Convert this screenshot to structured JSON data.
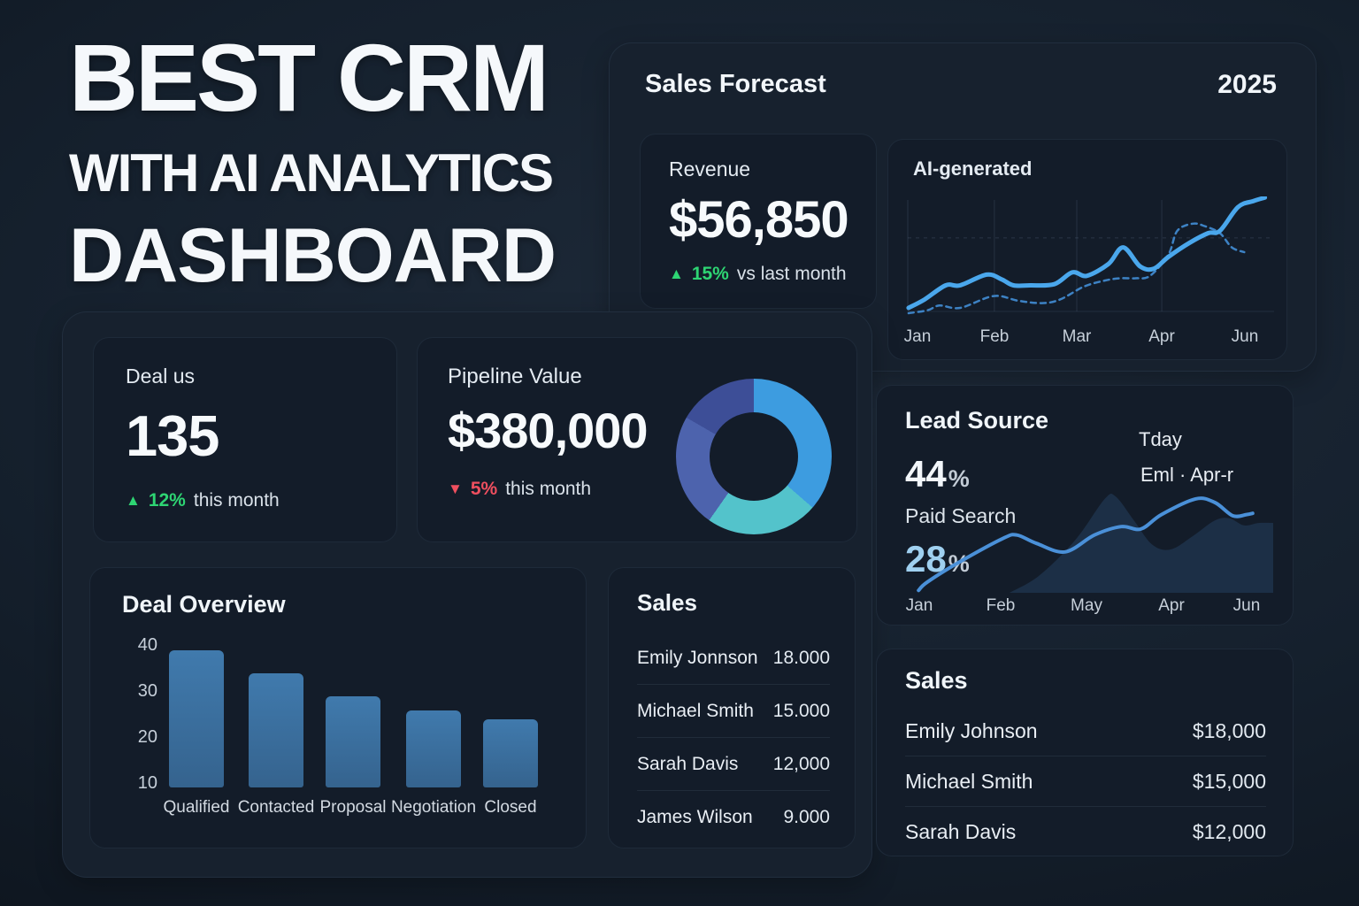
{
  "page": {
    "title_lines": [
      "BEST CRM",
      "WITH AI ANALYTICS",
      "DASHBOARD"
    ]
  },
  "colors": {
    "green": "#2ed573",
    "red": "#ef4f5f",
    "solid_line": "#4aa7ec",
    "dashed_line": "#3d82c4",
    "lead_line": "#4a90d8",
    "lead_fill": "#24405f",
    "stat_lightblue": "#9fd0f0",
    "bar_blue": "#3a6d9c"
  },
  "forecast": {
    "title": "Sales Forecast",
    "year": "2025",
    "revenue_label": "Revenue",
    "revenue_value": "$56,850",
    "delta_icon": "▲",
    "delta_value": "15%",
    "delta_suffix": "vs last month",
    "chart_label": "AI-generated"
  },
  "deal_status": {
    "title": "Deal us",
    "value": "135",
    "delta_icon": "▲",
    "delta_value": "12%",
    "delta_suffix": "this month"
  },
  "pipeline": {
    "title": "Pipeline Value",
    "value": "$380,000",
    "delta_icon": "▼",
    "delta_value": "5%",
    "delta_suffix": "this month"
  },
  "deal_overview": {
    "title": "Deal Overview"
  },
  "sales_mini": {
    "title": "Sales",
    "rows": [
      {
        "name": "Emily Jonnson",
        "value": "18.000"
      },
      {
        "name": "Michael Smith",
        "value": "15.000"
      },
      {
        "name": "Sarah Davis",
        "value": "12,000"
      },
      {
        "name": "James Wilson",
        "value": "9.000"
      }
    ]
  },
  "lead_source": {
    "title": "Lead Source",
    "stat1_value": "44",
    "stat1_unit": "%",
    "stat1_label": "Paid Search",
    "stat2_value": "28",
    "stat2_unit": "%",
    "legend_top": "Tday",
    "legend_bottom": "Eml · Apr-r"
  },
  "sales_right": {
    "title": "Sales",
    "rows": [
      {
        "name": "Emily Johnson",
        "value": "$18,000"
      },
      {
        "name": "Michael Smith",
        "value": "$15,000"
      },
      {
        "name": "Sarah Davis",
        "value": "$12,000"
      }
    ]
  },
  "chart_data": [
    {
      "id": "sales_forecast",
      "type": "line",
      "title": "AI-generated",
      "x_labels": [
        "Jan",
        "Feb",
        "Mar",
        "Apr",
        "Jun"
      ],
      "units": "points are [x-percent-of-plot, value-percent-of-plot]",
      "series": [
        {
          "name": "actual",
          "style": "solid",
          "points": [
            [
              0.7,
              6
            ],
            [
              5,
              13
            ],
            [
              10.8,
              25
            ],
            [
              14.7,
              25
            ],
            [
              21.9,
              34
            ],
            [
              26,
              30
            ],
            [
              29.2,
              25
            ],
            [
              33.7,
              25
            ],
            [
              40.3,
              26
            ],
            [
              45.2,
              36
            ],
            [
              49.1,
              33
            ],
            [
              55,
              43
            ],
            [
              59,
              57
            ],
            [
              63.6,
              41
            ],
            [
              67.3,
              39
            ],
            [
              71.3,
              49
            ],
            [
              77.1,
              61
            ],
            [
              82.1,
              69
            ],
            [
              85.3,
              71
            ],
            [
              90.2,
              91
            ],
            [
              94.3,
              96
            ],
            [
              97.5,
              99
            ]
          ]
        },
        {
          "name": "ai-projection",
          "style": "dashed",
          "points": [
            [
              0.7,
              1.5
            ],
            [
              5.9,
              4
            ],
            [
              9.1,
              8
            ],
            [
              14.7,
              6
            ],
            [
              23.8,
              16
            ],
            [
              30.5,
              12
            ],
            [
              36.9,
              10
            ],
            [
              41.8,
              13
            ],
            [
              48.4,
              24
            ],
            [
              54,
              29
            ],
            [
              58.2,
              31
            ],
            [
              62.4,
              31
            ],
            [
              66.3,
              33
            ],
            [
              71.3,
              51
            ],
            [
              73.7,
              71
            ],
            [
              77.9,
              77
            ],
            [
              81.1,
              75
            ],
            [
              85.3,
              69
            ],
            [
              88.5,
              57
            ],
            [
              91.9,
              53
            ]
          ]
        }
      ],
      "grid": {
        "vertical_fracs": [
          0.24,
          0.464,
          0.695
        ],
        "dashed_horizontal_frac": 0.35
      }
    },
    {
      "id": "pipeline_donut",
      "type": "pie",
      "segments": [
        {
          "color": "#3d9ce0",
          "deg": 131
        },
        {
          "color": "#53c3cb",
          "deg": 84
        },
        {
          "color": "#4d63ad",
          "deg": 85
        },
        {
          "color": "#3d4e97",
          "deg": 60
        }
      ]
    },
    {
      "id": "lead_source",
      "type": "area",
      "x_labels": [
        "Jan",
        "Feb",
        "May",
        "Apr",
        "Jun"
      ],
      "units": "points are [x-percent-of-plot, value-percent-of-plot]",
      "line_points": [
        [
          3.2,
          2
        ],
        [
          5.6,
          9
        ],
        [
          14.6,
          26
        ],
        [
          26.1,
          45
        ],
        [
          30,
          48
        ],
        [
          35.4,
          41
        ],
        [
          43.2,
          34
        ],
        [
          51.2,
          48
        ],
        [
          58.5,
          55
        ],
        [
          63.9,
          53
        ],
        [
          69.5,
          65
        ],
        [
          78.8,
          78
        ],
        [
          84.1,
          75
        ],
        [
          89,
          64
        ],
        [
          92.7,
          65
        ],
        [
          94.4,
          66
        ]
      ],
      "area_points": [
        [
          28,
          0
        ],
        [
          36,
          14
        ],
        [
          46,
          44
        ],
        [
          54,
          78
        ],
        [
          57,
          80
        ],
        [
          62,
          60
        ],
        [
          67,
          40
        ],
        [
          72,
          36
        ],
        [
          78,
          47
        ],
        [
          84,
          60
        ],
        [
          88,
          62
        ],
        [
          92,
          56
        ],
        [
          96,
          58
        ],
        [
          100,
          58
        ]
      ]
    },
    {
      "id": "deal_overview",
      "type": "bar",
      "title": "Deal Overview",
      "categories": [
        "Qualified",
        "Contacted",
        "Proposal",
        "Negotiation",
        "Closed"
      ],
      "values": [
        39,
        34,
        29,
        26,
        24
      ],
      "yticks": [
        40,
        30,
        20,
        10
      ],
      "ylim": [
        9,
        42
      ]
    }
  ]
}
